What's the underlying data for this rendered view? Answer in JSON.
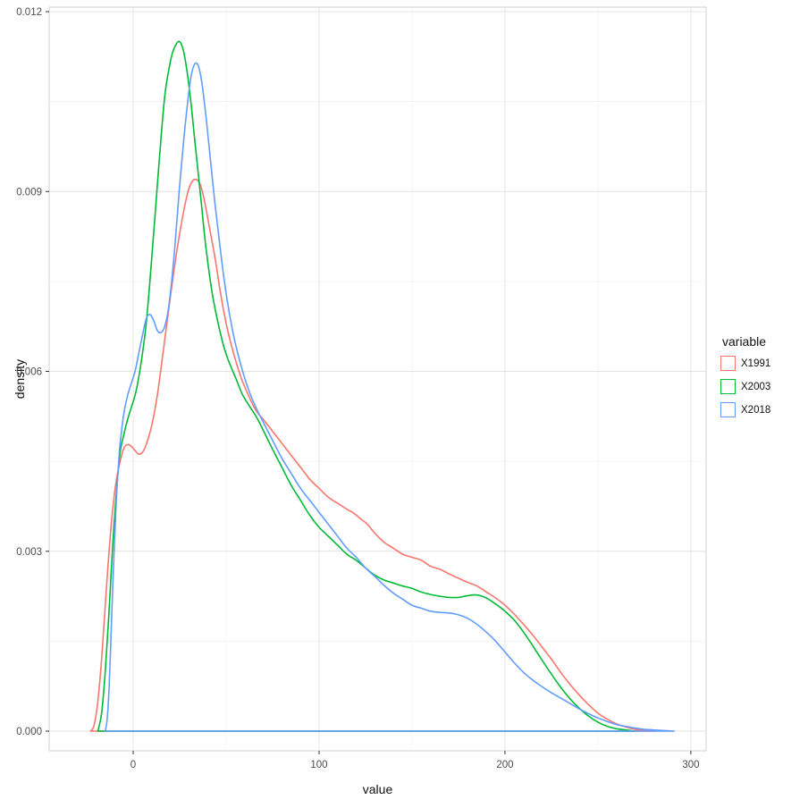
{
  "panel": {
    "background": "#FFFFFF",
    "border": "#D0D0D0",
    "grid_major": "#E4E4E4",
    "grid_minor": "#F1F1F1",
    "tick_color": "#333333",
    "tick_label_color": "#4D4D4D"
  },
  "chart_data": {
    "type": "line",
    "subtype": "density",
    "title": "",
    "xlabel": "value",
    "ylabel": "density",
    "xlim": [
      -45.2,
      308.2
    ],
    "ylim": [
      -0.000328,
      0.012075
    ],
    "x_ticks": [
      0,
      100,
      200,
      300
    ],
    "x_tick_labels": [
      "0",
      "100",
      "200",
      "300"
    ],
    "x_minor_ticks": [
      50,
      150,
      250
    ],
    "y_ticks": [
      0,
      0.003,
      0.006,
      0.009,
      0.012
    ],
    "y_tick_labels": [
      "0.000",
      "0.003",
      "0.006",
      "0.009",
      "0.012"
    ],
    "y_minor_ticks": [
      0.0015,
      0.0045,
      0.0075,
      0.0105
    ],
    "grid": true,
    "legend": {
      "title": "variable",
      "position": "right",
      "entries": [
        "X1991",
        "X2003",
        "X2018"
      ]
    },
    "series": [
      {
        "name": "X1991",
        "color": "#F8766D",
        "points": [
          [
            -23,
            0
          ],
          [
            -21,
            0.0001
          ],
          [
            -19,
            0.0005
          ],
          [
            -17,
            0.0012
          ],
          [
            -15,
            0.0021
          ],
          [
            -13,
            0.003
          ],
          [
            -11,
            0.0037
          ],
          [
            -9,
            0.0042
          ],
          [
            -7,
            0.0045
          ],
          [
            -5,
            0.00472
          ],
          [
            -3,
            0.00478
          ],
          [
            -1,
            0.00475
          ],
          [
            1,
            0.00468
          ],
          [
            3,
            0.00462
          ],
          [
            5,
            0.00465
          ],
          [
            7,
            0.00478
          ],
          [
            10,
            0.0051
          ],
          [
            13,
            0.0056
          ],
          [
            16,
            0.0063
          ],
          [
            19,
            0.007
          ],
          [
            22,
            0.0077
          ],
          [
            25,
            0.0083
          ],
          [
            28,
            0.0088
          ],
          [
            30,
            0.00905
          ],
          [
            32,
            0.00918
          ],
          [
            34,
            0.0092
          ],
          [
            36,
            0.00912
          ],
          [
            38,
            0.0089
          ],
          [
            41,
            0.0084
          ],
          [
            44,
            0.0079
          ],
          [
            47,
            0.0073
          ],
          [
            50,
            0.0068
          ],
          [
            54,
            0.0063
          ],
          [
            58,
            0.0059
          ],
          [
            62,
            0.0056
          ],
          [
            66,
            0.00535
          ],
          [
            70,
            0.0052
          ],
          [
            75,
            0.005
          ],
          [
            80,
            0.0048
          ],
          [
            85,
            0.0046
          ],
          [
            90,
            0.0044
          ],
          [
            95,
            0.0042
          ],
          [
            100,
            0.00405
          ],
          [
            105,
            0.0039
          ],
          [
            110,
            0.0038
          ],
          [
            115,
            0.0037
          ],
          [
            118,
            0.00365
          ],
          [
            122,
            0.00355
          ],
          [
            126,
            0.00345
          ],
          [
            130,
            0.0033
          ],
          [
            135,
            0.00315
          ],
          [
            140,
            0.00305
          ],
          [
            145,
            0.00295
          ],
          [
            150,
            0.0029
          ],
          [
            155,
            0.00285
          ],
          [
            160,
            0.00275
          ],
          [
            165,
            0.0027
          ],
          [
            170,
            0.00262
          ],
          [
            175,
            0.00255
          ],
          [
            180,
            0.00248
          ],
          [
            185,
            0.00242
          ],
          [
            190,
            0.00232
          ],
          [
            195,
            0.00222
          ],
          [
            200,
            0.0021
          ],
          [
            205,
            0.00195
          ],
          [
            210,
            0.00178
          ],
          [
            215,
            0.0016
          ],
          [
            220,
            0.0014
          ],
          [
            225,
            0.0012
          ],
          [
            230,
            0.00098
          ],
          [
            235,
            0.00078
          ],
          [
            240,
            0.0006
          ],
          [
            245,
            0.00044
          ],
          [
            250,
            0.0003
          ],
          [
            255,
            0.0002
          ],
          [
            260,
            0.00012
          ],
          [
            265,
            7e-05
          ],
          [
            270,
            3e-05
          ],
          [
            275,
            1e-05
          ],
          [
            280,
            0
          ]
        ]
      },
      {
        "name": "X2003",
        "color": "#00BA38",
        "points": [
          [
            -19,
            0
          ],
          [
            -17,
            0.0003
          ],
          [
            -15,
            0.001
          ],
          [
            -13,
            0.002
          ],
          [
            -11,
            0.0031
          ],
          [
            -9,
            0.004
          ],
          [
            -7,
            0.00465
          ],
          [
            -5,
            0.00495
          ],
          [
            -3,
            0.0052
          ],
          [
            -1,
            0.0054
          ],
          [
            1,
            0.0056
          ],
          [
            3,
            0.0059
          ],
          [
            5,
            0.0063
          ],
          [
            7,
            0.0068
          ],
          [
            9,
            0.0075
          ],
          [
            11,
            0.0083
          ],
          [
            13,
            0.0091
          ],
          [
            15,
            0.0099
          ],
          [
            17,
            0.0106
          ],
          [
            19,
            0.011
          ],
          [
            21,
            0.0113
          ],
          [
            23,
            0.01145
          ],
          [
            25,
            0.0115
          ],
          [
            27,
            0.01135
          ],
          [
            29,
            0.011
          ],
          [
            31,
            0.0105
          ],
          [
            33,
            0.0099
          ],
          [
            35,
            0.0093
          ],
          [
            37,
            0.0087
          ],
          [
            39,
            0.0081
          ],
          [
            42,
            0.0074
          ],
          [
            45,
            0.0069
          ],
          [
            48,
            0.0065
          ],
          [
            51,
            0.0062
          ],
          [
            55,
            0.0059
          ],
          [
            59,
            0.0056
          ],
          [
            63,
            0.0054
          ],
          [
            67,
            0.0052
          ],
          [
            71,
            0.00495
          ],
          [
            75,
            0.0047
          ],
          [
            80,
            0.0044
          ],
          [
            85,
            0.0041
          ],
          [
            90,
            0.00385
          ],
          [
            95,
            0.0036
          ],
          [
            100,
            0.0034
          ],
          [
            105,
            0.00325
          ],
          [
            110,
            0.0031
          ],
          [
            115,
            0.00295
          ],
          [
            120,
            0.00285
          ],
          [
            125,
            0.00272
          ],
          [
            130,
            0.0026
          ],
          [
            135,
            0.00252
          ],
          [
            140,
            0.00247
          ],
          [
            145,
            0.00242
          ],
          [
            150,
            0.00238
          ],
          [
            155,
            0.00232
          ],
          [
            160,
            0.00228
          ],
          [
            165,
            0.00225
          ],
          [
            170,
            0.00223
          ],
          [
            175,
            0.00223
          ],
          [
            180,
            0.00226
          ],
          [
            185,
            0.00227
          ],
          [
            190,
            0.00222
          ],
          [
            195,
            0.00212
          ],
          [
            200,
            0.002
          ],
          [
            205,
            0.00185
          ],
          [
            210,
            0.00165
          ],
          [
            215,
            0.00142
          ],
          [
            220,
            0.00118
          ],
          [
            225,
            0.00095
          ],
          [
            230,
            0.00073
          ],
          [
            235,
            0.00054
          ],
          [
            240,
            0.00038
          ],
          [
            245,
            0.00025
          ],
          [
            250,
            0.00015
          ],
          [
            255,
            8e-05
          ],
          [
            260,
            4e-05
          ],
          [
            265,
            2e-05
          ],
          [
            270,
            0
          ]
        ]
      },
      {
        "name": "X2018",
        "color": "#619CFF",
        "points": [
          [
            -15,
            0
          ],
          [
            -14,
            0.0002
          ],
          [
            -13,
            0.0007
          ],
          [
            -12,
            0.0015
          ],
          [
            -11,
            0.0024
          ],
          [
            -10,
            0.0032
          ],
          [
            -9,
            0.0039
          ],
          [
            -8,
            0.0044
          ],
          [
            -7,
            0.0048
          ],
          [
            -5,
            0.0053
          ],
          [
            -3,
            0.0056
          ],
          [
            -1,
            0.0058
          ],
          [
            1,
            0.006
          ],
          [
            3,
            0.0063
          ],
          [
            5,
            0.0066
          ],
          [
            7,
            0.00688
          ],
          [
            9,
            0.00695
          ],
          [
            11,
            0.00685
          ],
          [
            13,
            0.00668
          ],
          [
            15,
            0.00665
          ],
          [
            17,
            0.00675
          ],
          [
            19,
            0.00705
          ],
          [
            21,
            0.0076
          ],
          [
            23,
            0.0083
          ],
          [
            25,
            0.0091
          ],
          [
            27,
            0.0098
          ],
          [
            29,
            0.0104
          ],
          [
            31,
            0.0109
          ],
          [
            33,
            0.01112
          ],
          [
            35,
            0.0111
          ],
          [
            37,
            0.0108
          ],
          [
            39,
            0.0103
          ],
          [
            41,
            0.0097
          ],
          [
            44,
            0.0088
          ],
          [
            47,
            0.008
          ],
          [
            50,
            0.0073
          ],
          [
            54,
            0.0066
          ],
          [
            58,
            0.0061
          ],
          [
            62,
            0.0057
          ],
          [
            66,
            0.0054
          ],
          [
            70,
            0.00515
          ],
          [
            75,
            0.00485
          ],
          [
            80,
            0.00455
          ],
          [
            85,
            0.0043
          ],
          [
            90,
            0.00405
          ],
          [
            95,
            0.00385
          ],
          [
            100,
            0.00365
          ],
          [
            105,
            0.00345
          ],
          [
            110,
            0.00325
          ],
          [
            115,
            0.00305
          ],
          [
            120,
            0.0029
          ],
          [
            125,
            0.00272
          ],
          [
            130,
            0.00258
          ],
          [
            135,
            0.00243
          ],
          [
            140,
            0.0023
          ],
          [
            145,
            0.0022
          ],
          [
            150,
            0.0021
          ],
          [
            155,
            0.00205
          ],
          [
            160,
            0.002
          ],
          [
            165,
            0.00198
          ],
          [
            170,
            0.00197
          ],
          [
            175,
            0.00194
          ],
          [
            180,
            0.00188
          ],
          [
            185,
            0.00178
          ],
          [
            190,
            0.00165
          ],
          [
            195,
            0.0015
          ],
          [
            200,
            0.00132
          ],
          [
            205,
            0.00114
          ],
          [
            210,
            0.00098
          ],
          [
            215,
            0.00085
          ],
          [
            220,
            0.00074
          ],
          [
            225,
            0.00064
          ],
          [
            230,
            0.00055
          ],
          [
            235,
            0.00046
          ],
          [
            240,
            0.00037
          ],
          [
            245,
            0.00029
          ],
          [
            250,
            0.00022
          ],
          [
            255,
            0.00016
          ],
          [
            260,
            0.00011
          ],
          [
            265,
            8e-05
          ],
          [
            270,
            5e-05
          ],
          [
            275,
            3e-05
          ],
          [
            280,
            2e-05
          ],
          [
            285,
            1e-05
          ],
          [
            291,
            0
          ]
        ]
      }
    ]
  }
}
